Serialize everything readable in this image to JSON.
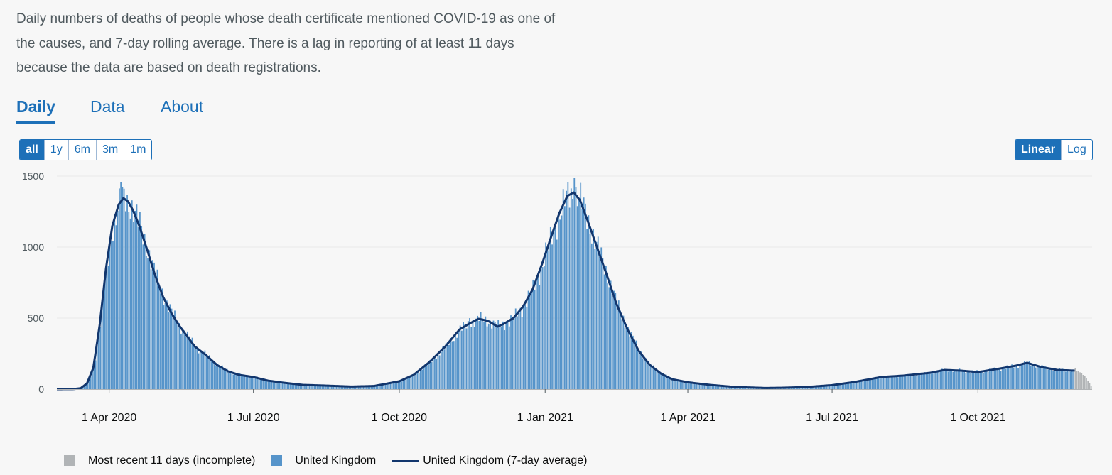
{
  "description": "Daily numbers of deaths of people whose death certificate mentioned COVID-19 as one of the causes, and 7-day rolling average. There is a lag in reporting of at least 11 days because the data are based on death registrations.",
  "tabs": [
    "Daily",
    "Data",
    "About"
  ],
  "active_tab": "Daily",
  "range_buttons": [
    "all",
    "1y",
    "6m",
    "3m",
    "1m"
  ],
  "active_range": "all",
  "scale_buttons": [
    "Linear",
    "Log"
  ],
  "active_scale": "Linear",
  "legend": {
    "incomplete": "Most recent 11 days (incomplete)",
    "daily": "United Kingdom",
    "average": "United Kingdom (7-day average)"
  },
  "colors": {
    "bar": "#5694ca",
    "incomplete": "#b1b4b6",
    "line": "#12366d",
    "accent": "#1d70b8"
  },
  "chart_data": {
    "type": "bar",
    "y_scale": "linear",
    "ylim": [
      0,
      1500
    ],
    "y_ticks": [
      "0",
      "500",
      "1000",
      "1500"
    ],
    "x_tick_labels": [
      "1 Apr 2020",
      "1 Jul 2020",
      "1 Oct 2020",
      "1 Jan 2021",
      "1 Apr 2021",
      "1 Jul 2021",
      "1 Oct 2021"
    ],
    "x_tick_dates": [
      "2020-04-01",
      "2020-07-01",
      "2020-10-01",
      "2021-01-01",
      "2021-04-01",
      "2021-07-01",
      "2021-10-01"
    ],
    "x_range": [
      "2020-02-28",
      "2021-12-12"
    ],
    "grid": true,
    "legend_position": "bottom-left",
    "series": [
      {
        "name": "United Kingdom (7-day average)",
        "kind": "line",
        "points": [
          [
            "2020-02-28",
            0
          ],
          [
            "2020-03-10",
            1
          ],
          [
            "2020-03-14",
            6
          ],
          [
            "2020-03-18",
            40
          ],
          [
            "2020-03-22",
            150
          ],
          [
            "2020-03-26",
            450
          ],
          [
            "2020-03-30",
            850
          ],
          [
            "2020-04-03",
            1150
          ],
          [
            "2020-04-07",
            1300
          ],
          [
            "2020-04-10",
            1345
          ],
          [
            "2020-04-13",
            1320
          ],
          [
            "2020-04-16",
            1260
          ],
          [
            "2020-04-20",
            1150
          ],
          [
            "2020-04-25",
            980
          ],
          [
            "2020-04-30",
            800
          ],
          [
            "2020-05-05",
            650
          ],
          [
            "2020-05-10",
            540
          ],
          [
            "2020-05-15",
            450
          ],
          [
            "2020-05-20",
            375
          ],
          [
            "2020-05-25",
            300
          ],
          [
            "2020-06-01",
            240
          ],
          [
            "2020-06-08",
            170
          ],
          [
            "2020-06-15",
            125
          ],
          [
            "2020-06-22",
            100
          ],
          [
            "2020-07-01",
            85
          ],
          [
            "2020-07-10",
            60
          ],
          [
            "2020-07-20",
            45
          ],
          [
            "2020-08-01",
            30
          ],
          [
            "2020-08-15",
            25
          ],
          [
            "2020-09-01",
            18
          ],
          [
            "2020-09-15",
            22
          ],
          [
            "2020-10-01",
            55
          ],
          [
            "2020-10-10",
            100
          ],
          [
            "2020-10-20",
            190
          ],
          [
            "2020-10-30",
            300
          ],
          [
            "2020-11-08",
            420
          ],
          [
            "2020-11-14",
            460
          ],
          [
            "2020-11-20",
            495
          ],
          [
            "2020-11-26",
            480
          ],
          [
            "2020-12-02",
            440
          ],
          [
            "2020-12-06",
            460
          ],
          [
            "2020-12-12",
            500
          ],
          [
            "2020-12-18",
            580
          ],
          [
            "2020-12-24",
            700
          ],
          [
            "2020-12-30",
            880
          ],
          [
            "2021-01-05",
            1080
          ],
          [
            "2021-01-10",
            1240
          ],
          [
            "2021-01-15",
            1360
          ],
          [
            "2021-01-19",
            1385
          ],
          [
            "2021-01-23",
            1330
          ],
          [
            "2021-01-28",
            1180
          ],
          [
            "2021-02-03",
            990
          ],
          [
            "2021-02-09",
            800
          ],
          [
            "2021-02-15",
            600
          ],
          [
            "2021-02-22",
            420
          ],
          [
            "2021-03-01",
            270
          ],
          [
            "2021-03-08",
            170
          ],
          [
            "2021-03-15",
            110
          ],
          [
            "2021-03-22",
            70
          ],
          [
            "2021-04-01",
            48
          ],
          [
            "2021-04-15",
            30
          ],
          [
            "2021-05-01",
            15
          ],
          [
            "2021-05-20",
            8
          ],
          [
            "2021-06-01",
            10
          ],
          [
            "2021-06-15",
            15
          ],
          [
            "2021-07-01",
            28
          ],
          [
            "2021-07-15",
            50
          ],
          [
            "2021-08-01",
            85
          ],
          [
            "2021-08-15",
            95
          ],
          [
            "2021-09-01",
            115
          ],
          [
            "2021-09-10",
            135
          ],
          [
            "2021-09-20",
            130
          ],
          [
            "2021-10-01",
            120
          ],
          [
            "2021-10-15",
            145
          ],
          [
            "2021-10-25",
            165
          ],
          [
            "2021-11-01",
            185
          ],
          [
            "2021-11-10",
            155
          ],
          [
            "2021-11-20",
            135
          ],
          [
            "2021-12-01",
            130
          ]
        ]
      },
      {
        "name": "United Kingdom",
        "kind": "bar",
        "note": "daily values shown as bars following the 7-day average with day-to-day variation; spikes noted",
        "spikes": [
          [
            "2020-04-08",
            1460
          ],
          [
            "2020-04-12",
            1370
          ],
          [
            "2020-11-14",
            500
          ],
          [
            "2021-01-19",
            1490
          ]
        ]
      },
      {
        "name": "Most recent 11 days (incomplete)",
        "kind": "bar",
        "start": "2021-12-01",
        "values": [
          150,
          130,
          125,
          118,
          110,
          100,
          90,
          75,
          60,
          40,
          20
        ]
      }
    ]
  }
}
